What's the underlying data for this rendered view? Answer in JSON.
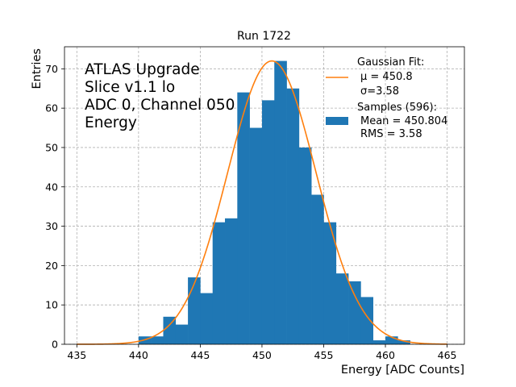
{
  "chart_data": {
    "type": "histogram",
    "title": "Run 1722",
    "xlabel": "Energy [ADC Counts]",
    "ylabel": "Entries",
    "xlim": [
      434.0,
      466.4
    ],
    "ylim": [
      0,
      75.6
    ],
    "xticks": [
      435,
      440,
      445,
      450,
      455,
      460,
      465
    ],
    "yticks": [
      0,
      10,
      20,
      30,
      40,
      50,
      60,
      70
    ],
    "grid": true,
    "annotation_lines": [
      "ATLAS Upgrade",
      "Slice v1.1 lo",
      "ADC 0, Channel 050",
      "Energy"
    ],
    "bins": [
      {
        "x0": 440,
        "x1": 441,
        "count": 2
      },
      {
        "x0": 441,
        "x1": 442,
        "count": 2
      },
      {
        "x0": 442,
        "x1": 443,
        "count": 7
      },
      {
        "x0": 443,
        "x1": 444,
        "count": 5
      },
      {
        "x0": 444,
        "x1": 445,
        "count": 17
      },
      {
        "x0": 445,
        "x1": 446,
        "count": 13
      },
      {
        "x0": 446,
        "x1": 447,
        "count": 31
      },
      {
        "x0": 447,
        "x1": 448,
        "count": 32
      },
      {
        "x0": 448,
        "x1": 449,
        "count": 64
      },
      {
        "x0": 449,
        "x1": 450,
        "count": 55
      },
      {
        "x0": 450,
        "x1": 451,
        "count": 62
      },
      {
        "x0": 451,
        "x1": 452,
        "count": 72
      },
      {
        "x0": 452,
        "x1": 453,
        "count": 65
      },
      {
        "x0": 453,
        "x1": 454,
        "count": 50
      },
      {
        "x0": 454,
        "x1": 455,
        "count": 38
      },
      {
        "x0": 455,
        "x1": 456,
        "count": 31
      },
      {
        "x0": 456,
        "x1": 457,
        "count": 18
      },
      {
        "x0": 457,
        "x1": 458,
        "count": 16
      },
      {
        "x0": 458,
        "x1": 459,
        "count": 12
      },
      {
        "x0": 459,
        "x1": 460,
        "count": 1
      },
      {
        "x0": 460,
        "x1": 461,
        "count": 2
      },
      {
        "x0": 461,
        "x1": 462,
        "count": 1
      }
    ],
    "fit": {
      "mu": 450.8,
      "sigma": 3.58,
      "amplitude": 72,
      "x_range": [
        435,
        465
      ]
    },
    "legend": {
      "position": "top-right",
      "fit_label_title": "Gaussian Fit:",
      "fit_label_mu": "μ = 450.8",
      "fit_label_sigma": "σ=3.58",
      "samples_label_title": "Samples (596):",
      "samples_label_mean": "Mean = 450.804",
      "samples_label_rms": "RMS = 3.58"
    },
    "colors": {
      "bars": "#1f77b4",
      "fit": "#ff7f0e",
      "grid": "#b0b0b0"
    }
  }
}
